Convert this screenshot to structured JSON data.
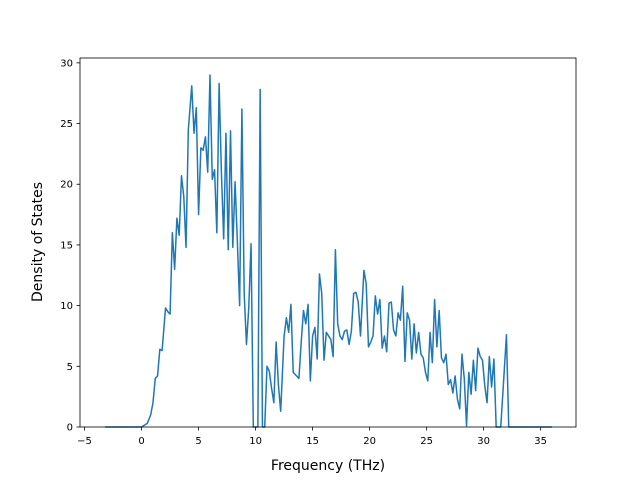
{
  "chart_data": {
    "type": "line",
    "xlabel": "Frequency (THz)",
    "ylabel": "Density of States",
    "color": "#1f77b4",
    "xlim": [
      -5.4,
      38.1
    ],
    "ylim": [
      0,
      30.4
    ],
    "xticks": [
      {
        "value": -5,
        "label": "−5"
      },
      0,
      5,
      10,
      15,
      20,
      25,
      30,
      35
    ],
    "yticks": [
      0,
      5,
      10,
      15,
      20,
      25,
      30
    ],
    "x": [
      -3.2,
      0,
      0.5,
      0.8,
      1.0,
      1.2,
      1.4,
      1.6,
      1.8,
      2.1,
      2.3,
      2.5,
      2.7,
      2.9,
      3.1,
      3.3,
      3.5,
      3.7,
      3.9,
      4.1,
      4.4,
      4.6,
      4.8,
      5.0,
      5.2,
      5.4,
      5.6,
      5.8,
      6.0,
      6.2,
      6.4,
      6.6,
      6.8,
      7.0,
      7.2,
      7.4,
      7.6,
      7.8,
      8.0,
      8.2,
      8.4,
      8.6,
      8.8,
      9.0,
      9.2,
      9.4,
      9.6,
      9.8,
      10.0,
      10.2,
      10.4,
      10.6,
      10.8,
      11.0,
      11.2,
      11.4,
      11.6,
      11.8,
      12.0,
      12.2,
      12.5,
      12.7,
      12.9,
      13.1,
      13.3,
      13.6,
      13.8,
      14.0,
      14.2,
      14.4,
      14.6,
      14.8,
      15.0,
      15.2,
      15.4,
      15.6,
      15.8,
      16.0,
      16.2,
      16.4,
      16.6,
      16.8,
      17.0,
      17.2,
      17.4,
      17.6,
      17.8,
      18.0,
      18.2,
      18.4,
      18.6,
      18.8,
      19.0,
      19.2,
      19.5,
      19.7,
      19.9,
      20.1,
      20.3,
      20.5,
      20.7,
      20.9,
      21.1,
      21.3,
      21.5,
      21.7,
      21.9,
      22.1,
      22.3,
      22.5,
      22.7,
      22.9,
      23.1,
      23.3,
      23.5,
      23.7,
      23.9,
      24.1,
      24.3,
      24.5,
      24.7,
      24.9,
      25.1,
      25.3,
      25.5,
      25.7,
      25.9,
      26.1,
      26.3,
      26.5,
      26.7,
      26.9,
      27.1,
      27.3,
      27.5,
      27.7,
      27.9,
      28.1,
      28.3,
      28.5,
      28.7,
      28.9,
      29.1,
      29.3,
      29.5,
      29.7,
      29.9,
      30.1,
      30.3,
      30.5,
      30.7,
      30.9,
      31.1,
      31.5,
      31.7,
      32.0,
      32.2,
      32.4,
      36.0
    ],
    "values": [
      0,
      0,
      0.3,
      1,
      2,
      4,
      4.2,
      6.4,
      6.3,
      9.8,
      9.5,
      9.3,
      16,
      13,
      17.2,
      15.8,
      20.7,
      19,
      14.8,
      24.5,
      28.1,
      24.2,
      26.3,
      17.5,
      23,
      22.8,
      23.9,
      21,
      29,
      20.4,
      21.2,
      16,
      28.3,
      21,
      15.5,
      24.2,
      14.6,
      24.4,
      14.8,
      20.2,
      15.3,
      10,
      26.2,
      11,
      6.8,
      9.8,
      15.1,
      0,
      0,
      0,
      27.8,
      0,
      0,
      5,
      4.6,
      3.2,
      2,
      7,
      3.5,
      1.3,
      7.5,
      9,
      7.8,
      10.1,
      4.5,
      4.2,
      4,
      7,
      9.6,
      8.5,
      10.1,
      3.8,
      7.5,
      8.2,
      5.6,
      12.6,
      11,
      5.5,
      7.8,
      7.5,
      7.2,
      5.8,
      14.6,
      8.5,
      7.5,
      7.2,
      7.9,
      8,
      6.8,
      7.9,
      11,
      11.1,
      10.3,
      7.5,
      12.9,
      11.8,
      6.6,
      7,
      7.5,
      10.8,
      9.3,
      10.5,
      6.5,
      7.5,
      6.2,
      10.2,
      10.3,
      8,
      7.5,
      9.4,
      8.8,
      11.6,
      5.4,
      9.4,
      8.8,
      5.6,
      8.5,
      6.1,
      7.8,
      6,
      5.7,
      4.5,
      3.8,
      7.8,
      5.3,
      10.5,
      6.6,
      9.6,
      5.7,
      5.3,
      6,
      3.5,
      3.9,
      2.8,
      4.2,
      2.3,
      1.5,
      6,
      4,
      0.1,
      4.5,
      2.7,
      5.5,
      3,
      6.5,
      5.8,
      5.5,
      3.4,
      2,
      5.8,
      3.3,
      5.6,
      0,
      0,
      3,
      7.6,
      0,
      0,
      0
    ]
  }
}
